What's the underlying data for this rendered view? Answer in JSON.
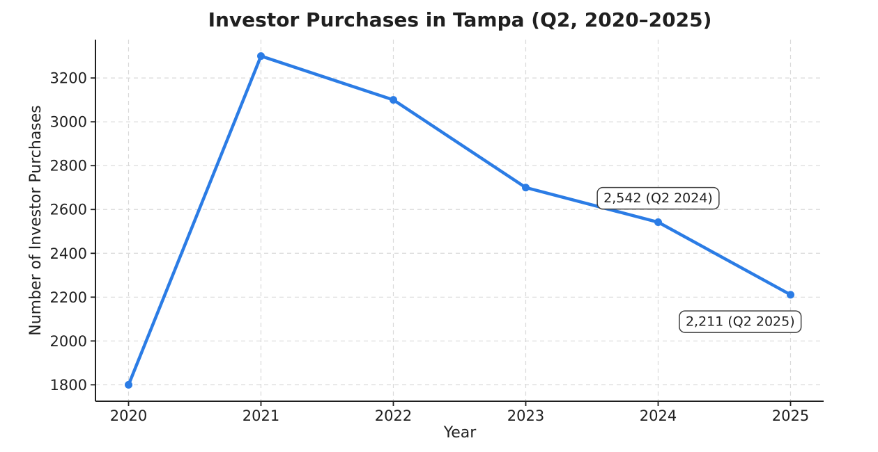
{
  "figure": {
    "background": "#ffffff"
  },
  "style": {
    "line_color": "#2b7ce5",
    "marker_color": "#2b7ce5",
    "grid_color": "#d9d9d9",
    "axis_color": "#1f1f1f",
    "tick_text_color": "#1f1f1f",
    "title_color": "#333333",
    "annotation_bg": "#ffffff",
    "annotation_border": "#3d3d3d"
  },
  "chart_data": {
    "type": "line",
    "title": "Investor Purchases in Tampa (Q2, 2020–2025)",
    "xlabel": "Year",
    "ylabel": "Number of Investor Purchases",
    "x": [
      2020,
      2021,
      2022,
      2023,
      2024,
      2025
    ],
    "series": [
      {
        "name": "Investor Purchases",
        "values": [
          1800,
          3300,
          3100,
          2700,
          2542,
          2211
        ]
      }
    ],
    "xticks": [
      2020,
      2021,
      2022,
      2023,
      2024,
      2025
    ],
    "xtick_labels": [
      "2020",
      "2021",
      "2022",
      "2023",
      "2024",
      "2025"
    ],
    "yticks": [
      1800,
      2000,
      2200,
      2400,
      2600,
      2800,
      3000,
      3200
    ],
    "ytick_labels": [
      "1800",
      "2000",
      "2200",
      "2400",
      "2600",
      "2800",
      "3000",
      "3200"
    ],
    "xlim": [
      2019.75,
      2025.25
    ],
    "ylim": [
      1725,
      3375
    ],
    "grid": true,
    "grid_style": "dashed",
    "legend": "none",
    "marker": "circle",
    "annotations": [
      {
        "text": "2,542 (Q2 2024)",
        "target_x": 2024,
        "target_y": 2542,
        "box_x": 2024.0,
        "box_y": 2651
      },
      {
        "text": "2,211 (Q2 2025)",
        "target_x": 2025,
        "target_y": 2211,
        "box_x": 2024.62,
        "box_y": 2088
      }
    ]
  }
}
